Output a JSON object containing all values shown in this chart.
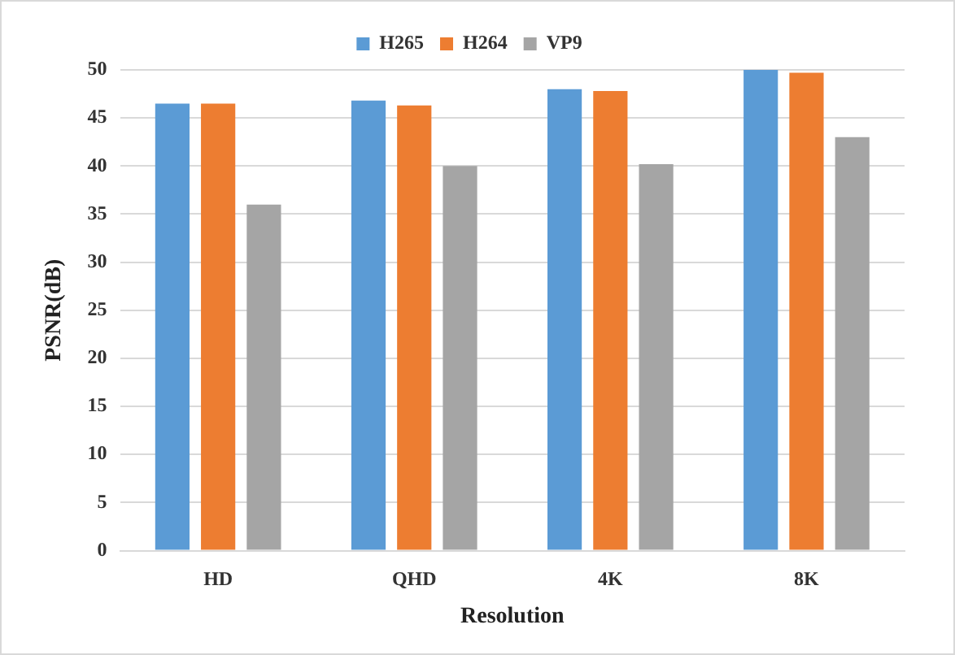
{
  "chart_data": {
    "type": "bar",
    "xlabel": "Resolution",
    "ylabel": "PSNR(dB)",
    "categories": [
      "HD",
      "QHD",
      "4K",
      "8K"
    ],
    "series": [
      {
        "name": "H265",
        "color": "#5b9bd5",
        "values": [
          46.5,
          46.8,
          48,
          50
        ]
      },
      {
        "name": "H264",
        "color": "#ed7d31",
        "values": [
          46.5,
          46.3,
          47.8,
          49.7
        ]
      },
      {
        "name": "VP9",
        "color": "#a5a5a5",
        "values": [
          36,
          40,
          40.2,
          43
        ]
      }
    ],
    "ylim": [
      0,
      50
    ],
    "yticks": [
      0,
      5,
      10,
      15,
      20,
      25,
      30,
      35,
      40,
      45,
      50
    ],
    "grid": "y",
    "legend": "top"
  }
}
